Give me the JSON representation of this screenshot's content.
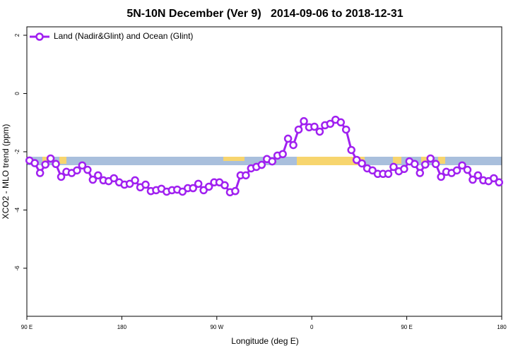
{
  "chart_data": {
    "type": "line",
    "title": "5N-10N December (Ver 9)   2014-09-06 to 2018-12-31",
    "x_label": "Longitude (deg E)",
    "y_label": "XCO2 - MLO trend (ppm)",
    "xlim": [
      90,
      540
    ],
    "ylim": [
      -7.65,
      2.29
    ],
    "xticks": [
      {
        "value": 90,
        "label": "90 E"
      },
      180,
      {
        "value": 270,
        "label": "90 W"
      },
      0,
      {
        "value": 450,
        "label": "90 E"
      },
      {
        "value": 540,
        "label": "180"
      }
    ],
    "yticks": [
      2,
      0,
      -2,
      -4,
      -6
    ],
    "legend": "top-left",
    "x": [
      92.5,
      97.5,
      102.5,
      107.5,
      112.5,
      117.5,
      122.5,
      127.5,
      132.5,
      137.5,
      142.5,
      147.5,
      152.5,
      157.5,
      162.5,
      167.5,
      172.5,
      177.5,
      182.5,
      187.5,
      192.5,
      197.5,
      202.5,
      207.5,
      212.5,
      217.5,
      222.5,
      227.5,
      232.5,
      237.5,
      242.5,
      247.5,
      252.5,
      257.5,
      262.5,
      267.5,
      272.5,
      277.5,
      282.5,
      287.5,
      292.5,
      297.5,
      302.5,
      307.5,
      312.5,
      317.5,
      322.5,
      327.5,
      332.5,
      337.5,
      342.5,
      347.5,
      352.5,
      357.5,
      362.5,
      367.5,
      372.5,
      377.5,
      382.5,
      387.5,
      392.5,
      397.5,
      402.5,
      407.5,
      412.5,
      417.5,
      422.5,
      427.5,
      432.5,
      437.5,
      442.5,
      447.5,
      452.5,
      457.5,
      462.5,
      467.5,
      472.5,
      477.5,
      482.5,
      487.5,
      492.5,
      497.5,
      502.5,
      507.5,
      512.5,
      517.5,
      522.5,
      527.5,
      532.5,
      537.5
    ],
    "series": [
      {
        "name": "Land (Nadir&Glint) and Ocean (Glint)",
        "color": "#a020f0",
        "values": [
          -2.3,
          -2.39,
          -2.73,
          -2.44,
          -2.23,
          -2.42,
          -2.86,
          -2.69,
          -2.73,
          -2.64,
          -2.47,
          -2.62,
          -2.96,
          -2.81,
          -2.98,
          -3.01,
          -2.91,
          -3.05,
          -3.13,
          -3.1,
          -2.98,
          -3.22,
          -3.13,
          -3.35,
          -3.32,
          -3.27,
          -3.37,
          -3.32,
          -3.3,
          -3.37,
          -3.25,
          -3.25,
          -3.1,
          -3.32,
          -3.2,
          -3.05,
          -3.05,
          -3.15,
          -3.39,
          -3.35,
          -2.81,
          -2.81,
          -2.57,
          -2.52,
          -2.45,
          -2.25,
          -2.33,
          -2.13,
          -2.08,
          -1.55,
          -1.77,
          -1.24,
          -0.95,
          -1.16,
          -1.14,
          -1.31,
          -1.09,
          -1.04,
          -0.9,
          -0.99,
          -1.24,
          -1.94,
          -2.28,
          -2.4,
          -2.57,
          -2.64,
          -2.76,
          -2.76,
          -2.76,
          -2.52,
          -2.67,
          -2.59,
          -2.33,
          -2.42,
          -2.73,
          -2.44,
          -2.23,
          -2.42,
          -2.86,
          -2.69,
          -2.73,
          -2.64,
          -2.47,
          -2.62,
          -2.96,
          -2.81,
          -2.98,
          -3.01,
          -2.91,
          -3.05
        ]
      }
    ]
  }
}
